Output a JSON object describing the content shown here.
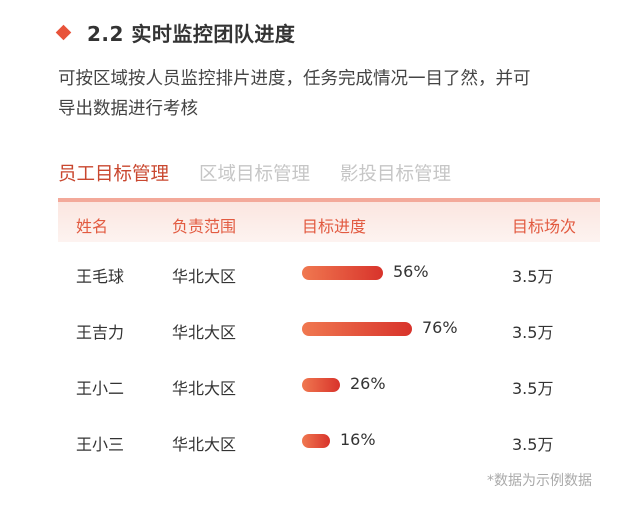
{
  "section": {
    "title": "2.2 实时监控团队进度"
  },
  "description": {
    "line1": "可按区域按人员监控排片进度，任务完成情况一目了然，并可",
    "line2": "导出数据进行考核"
  },
  "tabs": [
    {
      "label": "员工目标管理",
      "active": true
    },
    {
      "label": "区域目标管理",
      "active": false
    },
    {
      "label": "影投目标管理",
      "active": false
    }
  ],
  "table": {
    "headers": [
      "姓名",
      "负责范围",
      "目标进度",
      "目标场次"
    ],
    "rows": [
      {
        "name": "王毛球",
        "region": "华北大区",
        "progress": 56,
        "progress_label": "56%",
        "target": "3.5万"
      },
      {
        "name": "王吉力",
        "region": "华北大区",
        "progress": 76,
        "progress_label": "76%",
        "target": "3.5万"
      },
      {
        "name": "王小二",
        "region": "华北大区",
        "progress": 26,
        "progress_label": "26%",
        "target": "3.5万"
      },
      {
        "name": "王小三",
        "region": "华北大区",
        "progress": 16,
        "progress_label": "16%",
        "target": "3.5万"
      }
    ]
  },
  "footnote": "*数据为示例数据",
  "colors": {
    "accent": "#e8533a",
    "tab_active": "#c9472f",
    "bar_start": "#f07850",
    "bar_end": "#d8332b"
  }
}
